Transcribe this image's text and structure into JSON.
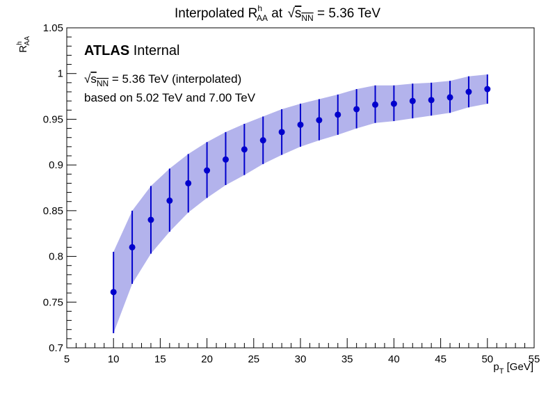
{
  "chart_data": {
    "type": "scatter",
    "title": {
      "main": "Interpolated R",
      "main_sup": "h",
      "main_sub": "AA",
      "mid": " at ",
      "sqrt_s": "s",
      "sqrt_sub": "NN",
      "rest": " = 5.36 TeV"
    },
    "ylabel": {
      "main": "R",
      "sup": "h",
      "sub": "AA"
    },
    "xlabel": {
      "main": "p",
      "sub": "T",
      "rest": " [GeV]"
    },
    "xlim": [
      5,
      55
    ],
    "ylim": [
      0.7,
      1.05
    ],
    "x_ticks": [
      5,
      10,
      15,
      20,
      25,
      30,
      35,
      40,
      45,
      50,
      55
    ],
    "y_ticks": [
      0.7,
      0.75,
      0.8,
      0.85,
      0.9,
      0.95,
      1,
      1.05
    ],
    "x_tick_labels": [
      "5",
      "10",
      "15",
      "20",
      "25",
      "30",
      "35",
      "40",
      "45",
      "50",
      "55"
    ],
    "y_tick_labels": [
      "0.7",
      "0.75",
      "0.8",
      "0.85",
      "0.9",
      "0.95",
      "1",
      "1.05"
    ],
    "annotations": {
      "atlas_bold": "ATLAS",
      "atlas_rest": " Internal",
      "line1_sqrt": "s",
      "line1_sub": "NN",
      "line1_rest": " = 5.36 TeV (interpolated)",
      "line2": "based on 5.02 TeV and 7.00 TeV"
    },
    "colors": {
      "marker": "#0000cc",
      "band": "#b3b3ec",
      "axis": "#000000"
    },
    "x": [
      10,
      12,
      14,
      16,
      18,
      20,
      22,
      24,
      26,
      28,
      30,
      32,
      34,
      36,
      38,
      40,
      42,
      44,
      46,
      48,
      50
    ],
    "y": [
      0.761,
      0.81,
      0.84,
      0.861,
      0.88,
      0.894,
      0.906,
      0.917,
      0.927,
      0.936,
      0.944,
      0.949,
      0.955,
      0.961,
      0.966,
      0.967,
      0.97,
      0.971,
      0.974,
      0.98,
      0.983
    ],
    "y_low": [
      0.716,
      0.77,
      0.803,
      0.827,
      0.848,
      0.864,
      0.878,
      0.889,
      0.901,
      0.911,
      0.92,
      0.927,
      0.933,
      0.94,
      0.946,
      0.948,
      0.951,
      0.954,
      0.957,
      0.963,
      0.967
    ],
    "y_high": [
      0.805,
      0.85,
      0.877,
      0.896,
      0.912,
      0.925,
      0.936,
      0.945,
      0.953,
      0.961,
      0.967,
      0.972,
      0.977,
      0.983,
      0.987,
      0.987,
      0.989,
      0.99,
      0.992,
      0.997,
      0.999
    ]
  }
}
